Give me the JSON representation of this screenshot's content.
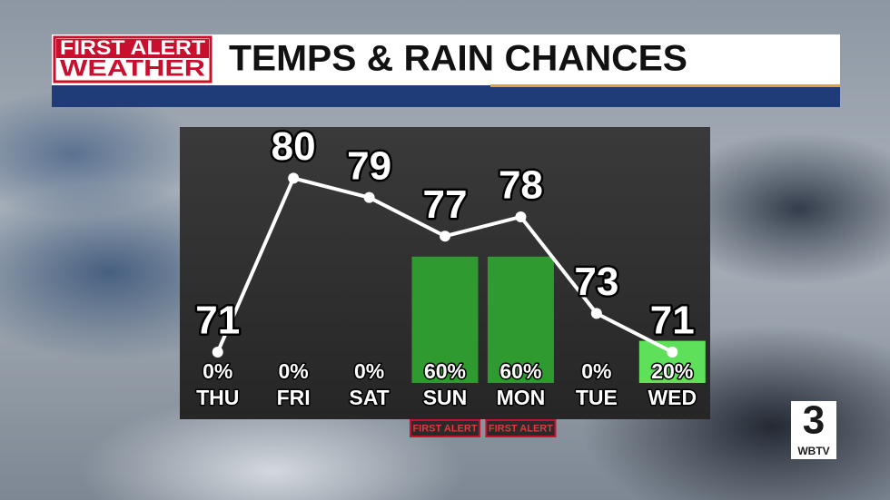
{
  "header": {
    "logo_top": "FIRST ALERT",
    "logo_bottom": "WEATHER",
    "title": "TEMPS & RAIN CHANCES"
  },
  "chart_data": {
    "type": "bar",
    "categories": [
      "THU",
      "FRI",
      "SAT",
      "SUN",
      "MON",
      "TUE",
      "WED"
    ],
    "ylim": [
      0,
      100
    ],
    "y2lim": [
      69.4,
      80.3
    ],
    "series": [
      {
        "type": "bar",
        "values": [
          0,
          0,
          0,
          60,
          60,
          0,
          20
        ],
        "value_labels": [
          "0%",
          "0%",
          "0%",
          "60%",
          "60%",
          "0%",
          "20%"
        ],
        "colors": [
          "#2f9a2f",
          "#2f9a2f",
          "#2f9a2f",
          "#2f9a2f",
          "#2f9a2f",
          "#2f9a2f",
          "#5fe05a"
        ]
      },
      {
        "type": "line",
        "axis": "y2",
        "color": "#ffffff",
        "values": [
          71,
          80,
          79,
          77,
          78,
          73,
          71
        ]
      }
    ],
    "annotations": [
      {
        "text": "FIRST ALERT",
        "category": "SUN"
      },
      {
        "text": "FIRST ALERT",
        "category": "MON"
      }
    ]
  },
  "station_logo": {
    "number": "3",
    "text": "WBTV"
  }
}
